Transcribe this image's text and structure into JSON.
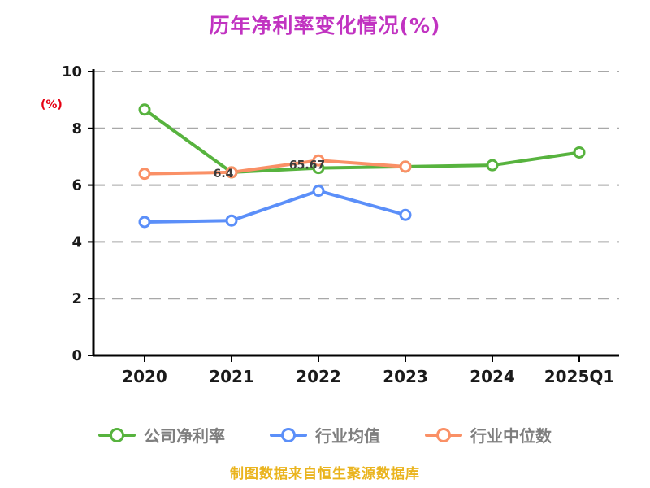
{
  "title": "历年净利率变化情况(%)",
  "ylabel": "(%)",
  "footer": "制图数据来自恒生聚源数据库",
  "colors": {
    "title": "#c133c1",
    "ylabel": "#e60012",
    "footer": "#eab41e",
    "axis": "#000000",
    "tick_labels": "#1a1a1a",
    "legend_text": "#7f7f7f",
    "gridline": "#a8a8a8",
    "series_green": "#57b33e",
    "series_blue": "#5b8ff9",
    "series_orange": "#fa9066"
  },
  "chart_data": {
    "type": "line",
    "title": "历年净利率变化情况(%)",
    "ylabel": "(%)",
    "categories": [
      "2020",
      "2021",
      "2022",
      "2023",
      "2024",
      "2025Q1"
    ],
    "series": [
      {
        "name": "公司净利率",
        "color": "#57b33e",
        "values": [
          8.66,
          6.45,
          6.6,
          6.65,
          6.7,
          7.15
        ]
      },
      {
        "name": "行业均值",
        "color": "#5b8ff9",
        "values": [
          4.7,
          4.75,
          5.8,
          4.95,
          null,
          null
        ]
      },
      {
        "name": "行业中位数",
        "color": "#fa9066",
        "values": [
          6.4,
          6.45,
          6.87,
          6.65,
          null,
          null
        ]
      }
    ],
    "ylim": [
      0,
      10
    ],
    "yticks": [
      0,
      2,
      4,
      6,
      8,
      10
    ],
    "grid": "horizontal-dashed",
    "legend_position": "bottom",
    "marker": "open-circle",
    "annotations": [
      {
        "text": "6.4",
        "cat_index": 1,
        "value": 6.42,
        "dx": -10
      },
      {
        "text": "65.67",
        "cat_index": 2,
        "value": 6.72,
        "dx": -14
      }
    ]
  }
}
